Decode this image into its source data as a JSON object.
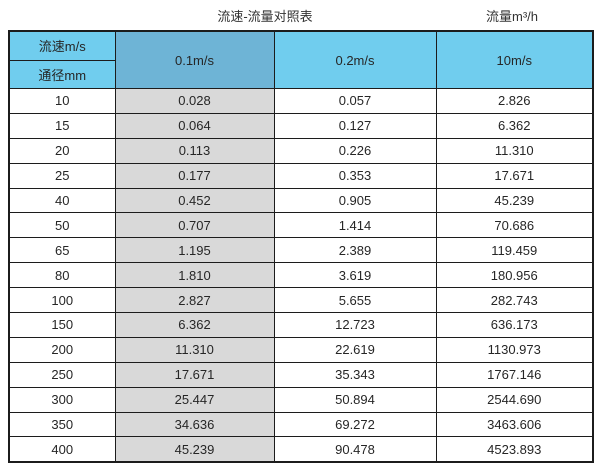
{
  "page": {
    "title_left": "流速-流量对照表",
    "title_right": "流量m³/h"
  },
  "colors": {
    "header_light_blue": "#70cdee",
    "header_dark_blue": "#6eb4d6",
    "column_grey": "#d9d9d9",
    "border": "#1c1c1c",
    "text": "#262626"
  },
  "table": {
    "corner_top": "流速m/s",
    "corner_bottom": "通径mm",
    "col_headers": [
      "0.1m/s",
      "0.2m/s",
      "10m/s"
    ],
    "rows": [
      {
        "dn": "10",
        "v01": "0.028",
        "v02": "0.057",
        "v10": "2.826"
      },
      {
        "dn": "15",
        "v01": "0.064",
        "v02": "0.127",
        "v10": "6.362"
      },
      {
        "dn": "20",
        "v01": "0.113",
        "v02": "0.226",
        "v10": "11.310"
      },
      {
        "dn": "25",
        "v01": "0.177",
        "v02": "0.353",
        "v10": "17.671"
      },
      {
        "dn": "40",
        "v01": "0.452",
        "v02": "0.905",
        "v10": "45.239"
      },
      {
        "dn": "50",
        "v01": "0.707",
        "v02": "1.414",
        "v10": "70.686"
      },
      {
        "dn": "65",
        "v01": "1.195",
        "v02": "2.389",
        "v10": "119.459"
      },
      {
        "dn": "80",
        "v01": "1.810",
        "v02": "3.619",
        "v10": "180.956"
      },
      {
        "dn": "100",
        "v01": "2.827",
        "v02": "5.655",
        "v10": "282.743"
      },
      {
        "dn": "150",
        "v01": "6.362",
        "v02": "12.723",
        "v10": "636.173"
      },
      {
        "dn": "200",
        "v01": "11.310",
        "v02": "22.619",
        "v10": "1130.973"
      },
      {
        "dn": "250",
        "v01": "17.671",
        "v02": "35.343",
        "v10": "1767.146"
      },
      {
        "dn": "300",
        "v01": "25.447",
        "v02": "50.894",
        "v10": "2544.690"
      },
      {
        "dn": "350",
        "v01": "34.636",
        "v02": "69.272",
        "v10": "3463.606"
      },
      {
        "dn": "400",
        "v01": "45.239",
        "v02": "90.478",
        "v10": "4523.893"
      }
    ]
  },
  "chart_data": {
    "type": "table",
    "title": "流速-流量对照表",
    "unit_note": "流量m³/h",
    "columns": [
      "通径mm",
      "0.1m/s",
      "0.2m/s",
      "10m/s"
    ],
    "rows": [
      [
        10,
        0.028,
        0.057,
        2.826
      ],
      [
        15,
        0.064,
        0.127,
        6.362
      ],
      [
        20,
        0.113,
        0.226,
        11.31
      ],
      [
        25,
        0.177,
        0.353,
        17.671
      ],
      [
        40,
        0.452,
        0.905,
        45.239
      ],
      [
        50,
        0.707,
        1.414,
        70.686
      ],
      [
        65,
        1.195,
        2.389,
        119.459
      ],
      [
        80,
        1.81,
        3.619,
        180.956
      ],
      [
        100,
        2.827,
        5.655,
        282.743
      ],
      [
        150,
        6.362,
        12.723,
        636.173
      ],
      [
        200,
        11.31,
        22.619,
        1130.973
      ],
      [
        250,
        17.671,
        35.343,
        1767.146
      ],
      [
        300,
        25.447,
        50.894,
        2544.69
      ],
      [
        350,
        34.636,
        69.272,
        3463.606
      ],
      [
        400,
        45.239,
        90.478,
        4523.893
      ]
    ]
  }
}
